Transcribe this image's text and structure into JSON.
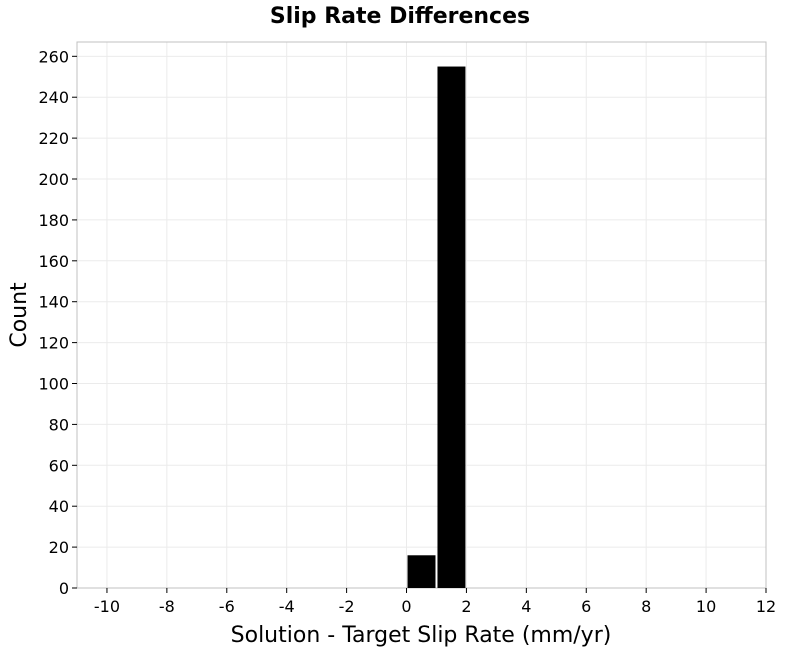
{
  "chart_data": {
    "type": "bar",
    "title": "Slip Rate Differences",
    "xlabel": "Solution - Target Slip Rate (mm/yr)",
    "ylabel": "Count",
    "xlim": [
      -11,
      12
    ],
    "ylim": [
      0,
      267
    ],
    "x_ticks": [
      "-10",
      "-8",
      "-6",
      "-4",
      "-2",
      "0",
      "2",
      "4",
      "6",
      "8",
      "10",
      "12"
    ],
    "y_ticks": [
      "0",
      "20",
      "40",
      "60",
      "80",
      "100",
      "120",
      "140",
      "160",
      "180",
      "200",
      "220",
      "240",
      "260"
    ],
    "bins": [
      {
        "x0": 0,
        "x1": 1,
        "count": 16
      },
      {
        "x0": 1,
        "x1": 2,
        "count": 255
      }
    ],
    "grid": true,
    "bar_color": "#000000",
    "grid_color": "#ebebeb",
    "frame_color": "#c0c0c0"
  }
}
